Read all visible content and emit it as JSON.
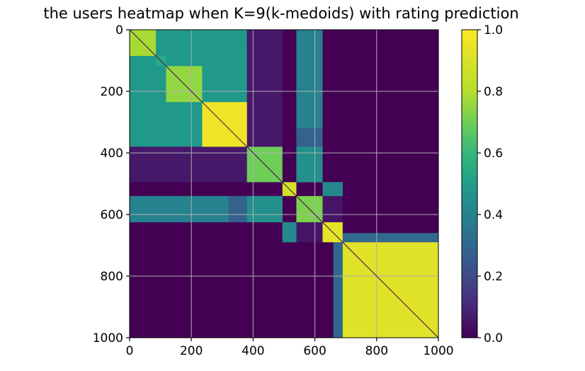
{
  "chart_data": {
    "type": "heatmap",
    "title": "the users heatmap when K=9(k-medoids) with rating prediction",
    "xlabel": "",
    "ylabel": "",
    "xlim": [
      0,
      1000
    ],
    "ylim": [
      1000,
      0
    ],
    "xticks": [
      0,
      200,
      400,
      600,
      800,
      1000
    ],
    "yticks": [
      0,
      200,
      400,
      600,
      800,
      1000
    ],
    "grid": true,
    "colormap": "viridis",
    "colorbar": {
      "range": [
        0.0,
        1.0
      ],
      "ticks": [
        "0.0",
        "0.2",
        "0.4",
        "0.6",
        "0.8",
        "1.0"
      ]
    },
    "background_value": 0.0,
    "diagonal_value": 0.0,
    "clusters": [
      {
        "start": 0,
        "end": 85,
        "value": 0.78
      },
      {
        "start": 85,
        "end": 118,
        "value": 0.55
      },
      {
        "start": 118,
        "end": 235,
        "value": 0.75
      },
      {
        "start": 235,
        "end": 380,
        "value": 0.96
      },
      {
        "start": 380,
        "end": 495,
        "value": 0.7
      },
      {
        "start": 495,
        "end": 540,
        "value": 0.88
      },
      {
        "start": 540,
        "end": 625,
        "value": 0.72
      },
      {
        "start": 625,
        "end": 690,
        "value": 0.93
      },
      {
        "start": 690,
        "end": 1000,
        "value": 0.92
      }
    ],
    "block_pairs": [
      {
        "rows": [
          0,
          380
        ],
        "cols": [
          0,
          380
        ],
        "value": 0.48
      },
      {
        "rows": [
          0,
          380
        ],
        "cols": [
          540,
          625
        ],
        "value": 0.28
      },
      {
        "rows": [
          0,
          40
        ],
        "cols": [
          380,
          460
        ],
        "value": 0.22
      },
      {
        "rows": [
          380,
          495
        ],
        "cols": [
          540,
          625
        ],
        "value": 0.5
      },
      {
        "rows": [
          540,
          625
        ],
        "cols": [
          0,
          320
        ],
        "value": 0.4
      },
      {
        "rows": [
          540,
          625
        ],
        "cols": [
          380,
          495
        ],
        "value": 0.45
      },
      {
        "rows": [
          540,
          625
        ],
        "cols": [
          625,
          690
        ],
        "value": 0.05
      },
      {
        "rows": [
          495,
          540
        ],
        "cols": [
          625,
          690
        ],
        "value": 0.55
      },
      {
        "rows": [
          380,
          495
        ],
        "cols": [
          0,
          380
        ],
        "value": 0.06
      },
      {
        "rows": [
          625,
          690
        ],
        "cols": [
          495,
          540
        ],
        "value": 0.42
      },
      {
        "rows": [
          690,
          1000
        ],
        "cols": [
          660,
          690
        ],
        "value": 0.3
      }
    ]
  }
}
